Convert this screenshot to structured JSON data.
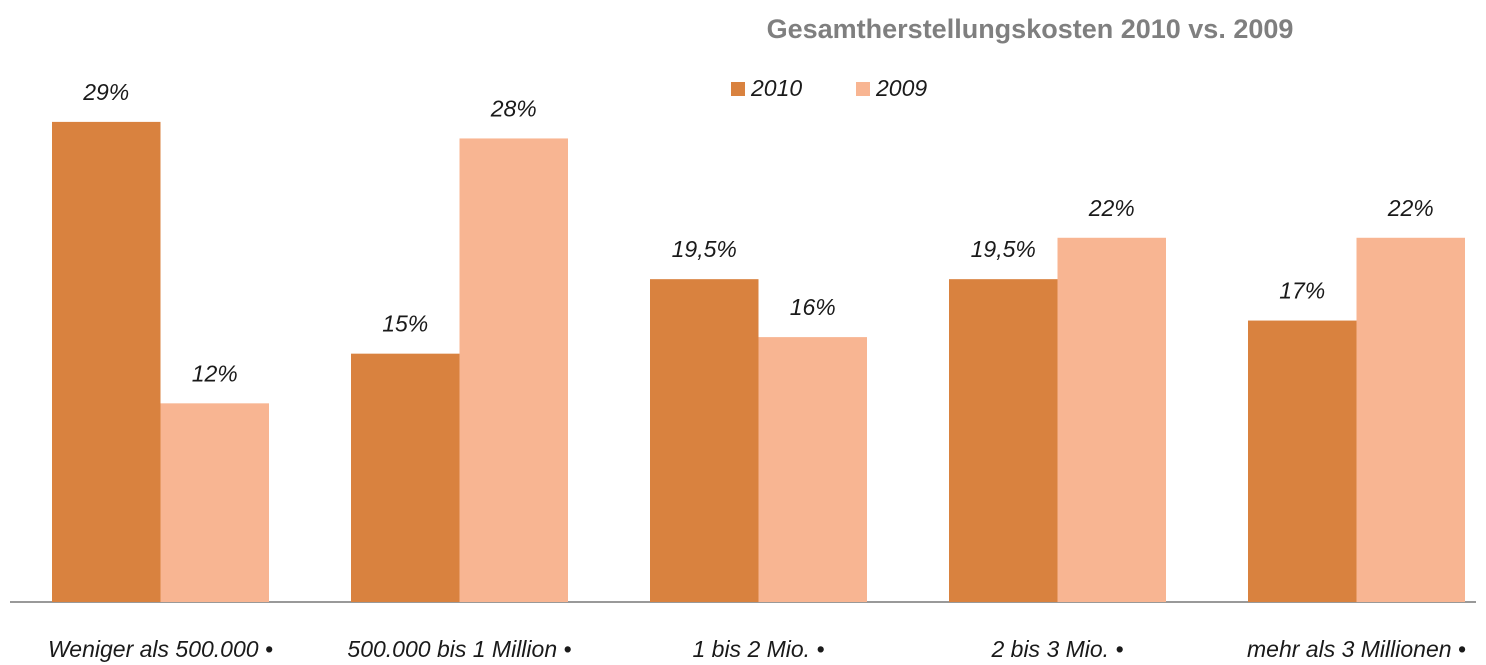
{
  "chart_data": {
    "type": "bar",
    "title": "Gesamtherstellungskosten 2010 vs. 2009",
    "categories": [
      "Weniger als 500.000 •",
      "500.000 bis 1 Million •",
      "1 bis 2 Mio. •",
      "2 bis 3 Mio. •",
      "mehr als 3 Millionen •"
    ],
    "series": [
      {
        "name": "2010",
        "color": "#d9823f",
        "values": [
          29,
          15,
          19.5,
          19.5,
          17
        ],
        "value_labels": [
          "29%",
          "15%",
          "19,5%",
          "19,5%",
          "17%"
        ]
      },
      {
        "name": "2009",
        "color": "#f8b592",
        "values": [
          12,
          28,
          16,
          22,
          22
        ],
        "value_labels": [
          "12%",
          "28%",
          "16%",
          "22%",
          "22%"
        ]
      }
    ],
    "ylim": [
      0,
      36
    ]
  }
}
